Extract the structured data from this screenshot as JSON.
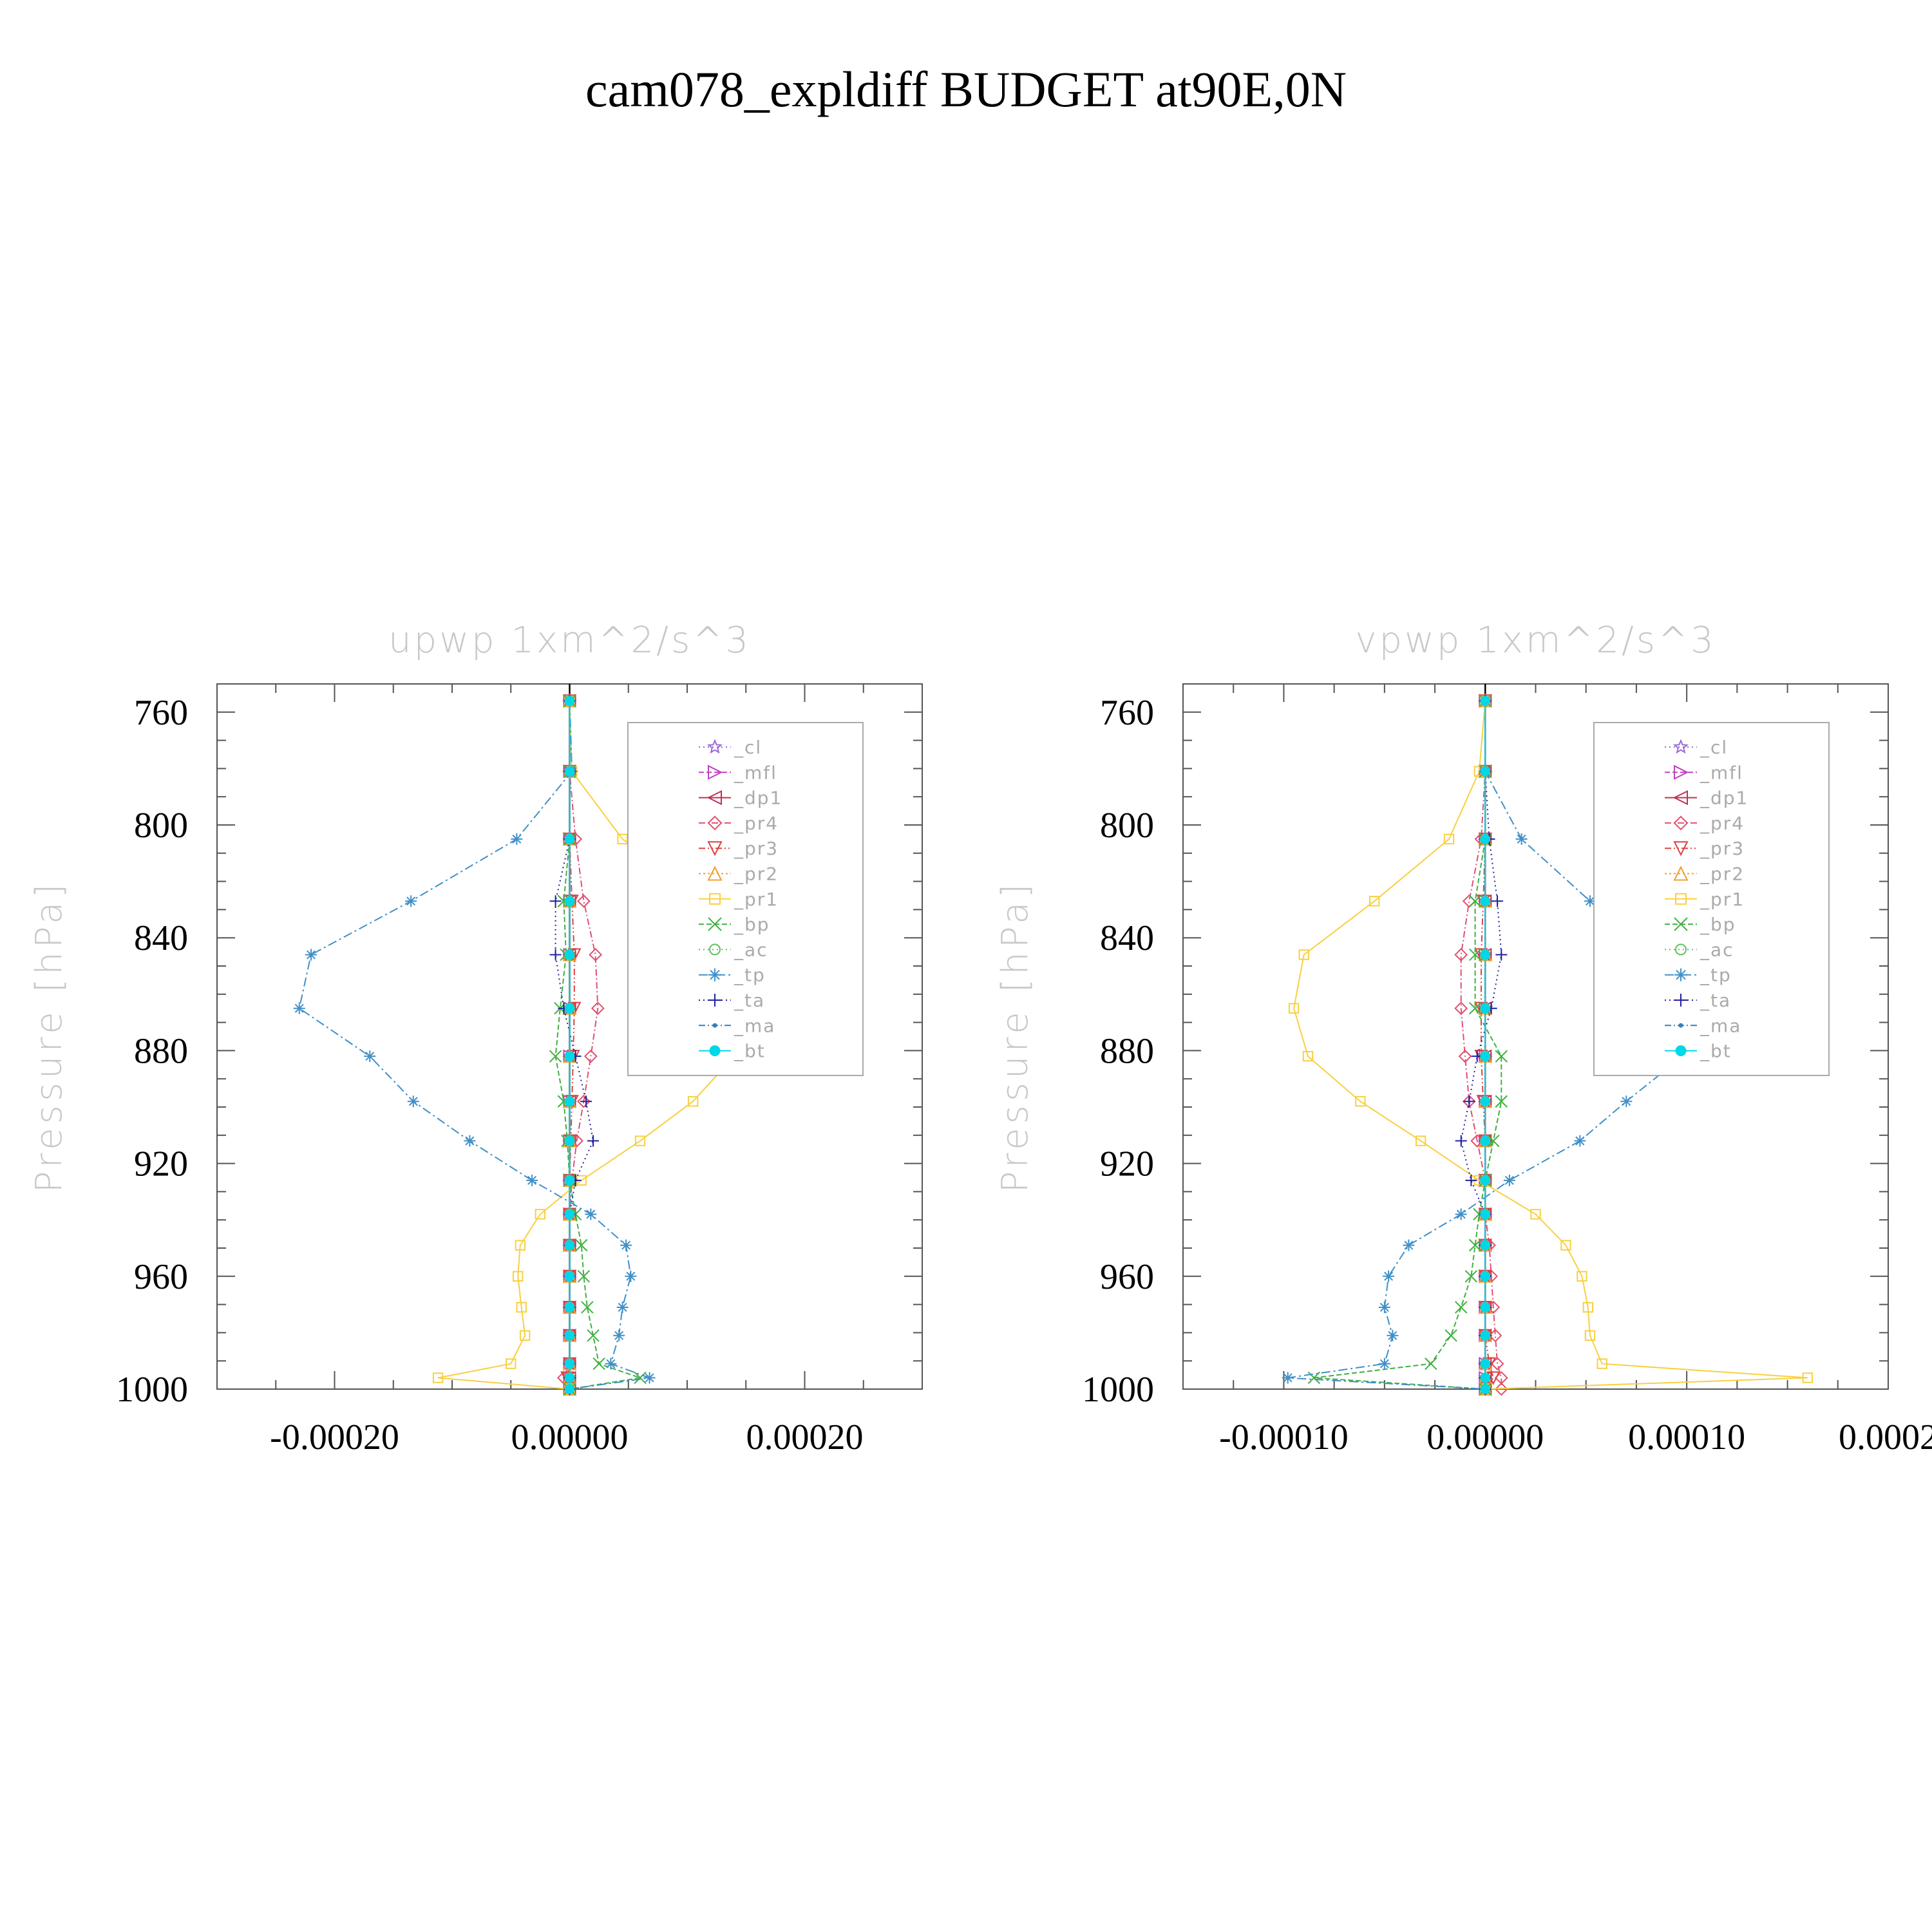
{
  "title": "cam078_expldiff  BUDGET at90E,0N",
  "legend_entries": [
    "_cl",
    "_mfl",
    "_dp1",
    "_pr4",
    "_pr3",
    "_pr2",
    "_pr1",
    "_bp",
    "_ac",
    "_tp",
    "_ta",
    "_ma",
    "_bt"
  ],
  "chart_data": [
    {
      "type": "line",
      "title": "upwp    1xm^2/s^3",
      "ylabel": "Pressure  [hPa]",
      "yticks": [
        760,
        800,
        840,
        880,
        920,
        960,
        1000
      ],
      "ylim": [
        1000,
        750
      ],
      "xticks": [
        -0.0002,
        0.0,
        0.0002
      ],
      "xtick_labels": [
        "-0.00020",
        "0.00000",
        "0.00020"
      ],
      "xlim": [
        -0.0003,
        0.0003
      ],
      "x_minor_step": 5e-05,
      "legend": "top-right",
      "pressure": [
        756,
        781,
        805,
        827,
        846,
        865,
        882,
        898,
        912,
        926,
        938,
        949,
        960,
        971,
        981,
        991,
        996,
        1000
      ],
      "series": [
        {
          "name": "_cl",
          "color": "#9b6ad8",
          "marker": "star",
          "dash": "2,5",
          "values": [
            0,
            0,
            0,
            0,
            0,
            0,
            0,
            0,
            0,
            0,
            0,
            0,
            0,
            0,
            0,
            0,
            0,
            0
          ]
        },
        {
          "name": "_mfl",
          "color": "#c040c0",
          "marker": "tri-right",
          "dash": "8,4",
          "values": [
            0,
            0,
            0,
            0,
            0,
            0,
            0,
            0,
            0,
            0,
            0,
            0,
            0,
            0,
            0,
            0,
            0,
            0
          ]
        },
        {
          "name": "_dp1",
          "color": "#c03050",
          "marker": "tri-left",
          "dash": "",
          "values": [
            0,
            0,
            0,
            0,
            0,
            0,
            0,
            0,
            0,
            0,
            0,
            0,
            0,
            0,
            0,
            0,
            0,
            0
          ]
        },
        {
          "name": "_pr4",
          "color": "#e05070",
          "marker": "diamond",
          "dash": "10,4,2,4",
          "values": [
            0,
            0,
            5e-06,
            1.2e-05,
            2.2e-05,
            2.4e-05,
            1.8e-05,
            1.2e-05,
            6e-06,
            2e-06,
            0,
            0,
            0,
            0,
            0,
            0,
            -5e-06,
            0
          ]
        },
        {
          "name": "_pr3",
          "color": "#e04040",
          "marker": "tri-down",
          "dash": "10,4,2,4,2,4",
          "values": [
            0,
            0,
            0,
            2e-06,
            4e-06,
            4e-06,
            3e-06,
            2e-06,
            1e-06,
            0,
            0,
            0,
            0,
            0,
            0,
            0,
            -2e-06,
            0
          ]
        },
        {
          "name": "_pr2",
          "color": "#f0a030",
          "marker": "tri-up",
          "dash": "3,4",
          "values": [
            0,
            0,
            0,
            0,
            0,
            0,
            0,
            0,
            0,
            0,
            0,
            0,
            0,
            0,
            0,
            0,
            0,
            0
          ]
        },
        {
          "name": "_pr1",
          "color": "#f8d040",
          "marker": "square",
          "dash": "",
          "values": [
            0,
            2e-06,
            4.5e-05,
            0.00012,
            0.0002,
            0.0002,
            0.00014,
            0.000105,
            6e-05,
            1e-05,
            -2.5e-05,
            -4.2e-05,
            -4.4e-05,
            -4.1e-05,
            -3.8e-05,
            -5e-05,
            -0.000112,
            0
          ]
        },
        {
          "name": "_bp",
          "color": "#40b040",
          "marker": "x",
          "dash": "8,4",
          "values": [
            0,
            0,
            0,
            -5e-06,
            -3e-06,
            -8e-06,
            -1.2e-05,
            -5e-06,
            -2e-06,
            0,
            5e-06,
            1e-05,
            1.2e-05,
            1.5e-05,
            2e-05,
            2.5e-05,
            6e-05,
            0
          ]
        },
        {
          "name": "_ac",
          "color": "#60c060",
          "marker": "circle",
          "dash": "2,5",
          "values": [
            0,
            0,
            0,
            0,
            0,
            0,
            0,
            0,
            0,
            0,
            0,
            0,
            0,
            0,
            0,
            0,
            0,
            0
          ]
        },
        {
          "name": "_tp",
          "color": "#4090c8",
          "marker": "asterisk",
          "dash": "14,5,3,5",
          "values": [
            0,
            2e-06,
            -4.5e-05,
            -0.000135,
            -0.00022,
            -0.00023,
            -0.00017,
            -0.000133,
            -8.5e-05,
            -3.2e-05,
            1.8e-05,
            4.8e-05,
            5.2e-05,
            4.5e-05,
            4.2e-05,
            3.5e-05,
            6.8e-05,
            0
          ]
        },
        {
          "name": "_ta",
          "color": "#2020a0",
          "marker": "plus",
          "dash": "2,5",
          "values": [
            0,
            0,
            0,
            -1.2e-05,
            -1.2e-05,
            -5e-06,
            5e-06,
            1.4e-05,
            2e-05,
            5e-06,
            0,
            0,
            0,
            0,
            0,
            0,
            0,
            0
          ]
        },
        {
          "name": "_ma",
          "color": "#3080c0",
          "marker": "dot",
          "dash": "10,4,2,4",
          "values": [
            0,
            0,
            0,
            0,
            0,
            0,
            0,
            0,
            0,
            0,
            0,
            0,
            0,
            0,
            0,
            0,
            0,
            0
          ]
        },
        {
          "name": "_bt",
          "color": "#00d8e8",
          "marker": "filled-circle",
          "dash": "",
          "values": [
            0,
            0,
            0,
            0,
            0,
            0,
            0,
            0,
            0,
            0,
            0,
            0,
            0,
            0,
            0,
            0,
            0,
            0
          ]
        }
      ]
    },
    {
      "type": "line",
      "title": "vpwp    1xm^2/s^3",
      "ylabel": "Pressure  [hPa]",
      "yticks": [
        760,
        800,
        840,
        880,
        920,
        960,
        1000
      ],
      "ylim": [
        1000,
        750
      ],
      "xticks": [
        -0.0001,
        0.0,
        0.0001,
        0.0002
      ],
      "xtick_labels": [
        "-0.00010",
        "0.00000",
        "0.00010",
        "0.0002"
      ],
      "xlim": [
        -0.00015,
        0.0002
      ],
      "x_minor_step": 2.5e-05,
      "legend": "top-right",
      "pressure": [
        756,
        781,
        805,
        827,
        846,
        865,
        882,
        898,
        912,
        926,
        938,
        949,
        960,
        971,
        981,
        991,
        996,
        1000
      ],
      "series": [
        {
          "name": "_cl",
          "color": "#9b6ad8",
          "marker": "star",
          "dash": "2,5",
          "values": [
            0,
            0,
            0,
            0,
            0,
            0,
            0,
            0,
            0,
            0,
            0,
            0,
            0,
            0,
            0,
            0,
            0,
            0
          ]
        },
        {
          "name": "_mfl",
          "color": "#c040c0",
          "marker": "tri-right",
          "dash": "8,4",
          "values": [
            0,
            0,
            0,
            0,
            0,
            0,
            0,
            0,
            0,
            0,
            0,
            0,
            0,
            0,
            0,
            0,
            0,
            0
          ]
        },
        {
          "name": "_dp1",
          "color": "#c03050",
          "marker": "tri-left",
          "dash": "",
          "values": [
            0,
            0,
            0,
            0,
            0,
            0,
            0,
            0,
            0,
            0,
            0,
            0,
            0,
            0,
            0,
            0,
            0,
            0
          ]
        },
        {
          "name": "_pr4",
          "color": "#e05070",
          "marker": "diamond",
          "dash": "10,4,2,4",
          "values": [
            0,
            0,
            -2e-06,
            -8e-06,
            -1.2e-05,
            -1.2e-05,
            -1e-05,
            -8e-06,
            -4e-06,
            0,
            0,
            2e-06,
            3e-06,
            4e-06,
            5e-06,
            6e-06,
            8e-06,
            8e-06
          ]
        },
        {
          "name": "_pr3",
          "color": "#e04040",
          "marker": "tri-down",
          "dash": "10,4,2,4,2,4",
          "values": [
            0,
            0,
            0,
            -1e-06,
            -2e-06,
            -2e-06,
            -2e-06,
            -1e-06,
            0,
            0,
            0,
            0,
            0,
            0,
            0,
            2e-06,
            4e-06,
            0
          ]
        },
        {
          "name": "_pr2",
          "color": "#f0a030",
          "marker": "tri-up",
          "dash": "3,4",
          "values": [
            0,
            0,
            0,
            0,
            0,
            0,
            0,
            0,
            0,
            0,
            0,
            0,
            0,
            0,
            0,
            0,
            0,
            0
          ]
        },
        {
          "name": "_pr1",
          "color": "#f8d040",
          "marker": "square",
          "dash": "",
          "values": [
            0,
            -3e-06,
            -1.8e-05,
            -5.5e-05,
            -9e-05,
            -9.5e-05,
            -8.8e-05,
            -6.2e-05,
            -3.2e-05,
            -3e-06,
            2.5e-05,
            4e-05,
            4.8e-05,
            5.1e-05,
            5.2e-05,
            5.8e-05,
            0.00016,
            0
          ]
        },
        {
          "name": "_bp",
          "color": "#40b040",
          "marker": "x",
          "dash": "8,4",
          "values": [
            0,
            0,
            0,
            -5e-06,
            -5e-06,
            -5e-06,
            8e-06,
            8e-06,
            4e-06,
            0,
            -3e-06,
            -5e-06,
            -7e-06,
            -1.2e-05,
            -1.7e-05,
            -2.7e-05,
            -8.5e-05,
            0
          ]
        },
        {
          "name": "_ac",
          "color": "#60c060",
          "marker": "circle",
          "dash": "2,5",
          "values": [
            0,
            0,
            0,
            0,
            0,
            0,
            0,
            0,
            0,
            0,
            0,
            0,
            0,
            0,
            0,
            0,
            0,
            0
          ]
        },
        {
          "name": "_tp",
          "color": "#4090c8",
          "marker": "asterisk",
          "dash": "14,5,3,5",
          "values": [
            0,
            0,
            1.8e-05,
            5.2e-05,
            9.2e-05,
            0.0001,
            9.8e-05,
            7e-05,
            4.7e-05,
            1.2e-05,
            -1.2e-05,
            -3.8e-05,
            -4.8e-05,
            -5e-05,
            -4.6e-05,
            -5e-05,
            -9.8e-05,
            0
          ]
        },
        {
          "name": "_ta",
          "color": "#2020a0",
          "marker": "plus",
          "dash": "2,5",
          "values": [
            0,
            0,
            2e-06,
            6e-06,
            8e-06,
            3e-06,
            -4e-06,
            -8e-06,
            -1.2e-05,
            -7e-06,
            0,
            0,
            0,
            0,
            0,
            0,
            0,
            0
          ]
        },
        {
          "name": "_ma",
          "color": "#3080c0",
          "marker": "dot",
          "dash": "10,4,2,4",
          "values": [
            0,
            0,
            0,
            0,
            0,
            0,
            0,
            0,
            0,
            0,
            0,
            0,
            0,
            0,
            0,
            0,
            0,
            0
          ]
        },
        {
          "name": "_bt",
          "color": "#00d8e8",
          "marker": "filled-circle",
          "dash": "",
          "values": [
            0,
            0,
            0,
            0,
            0,
            0,
            0,
            0,
            0,
            0,
            0,
            0,
            0,
            0,
            0,
            0,
            0,
            0
          ]
        }
      ]
    }
  ]
}
